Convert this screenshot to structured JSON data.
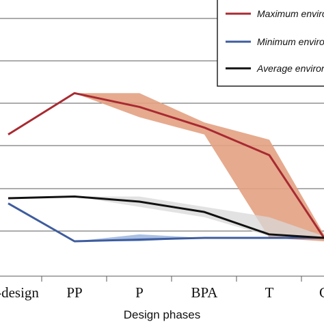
{
  "chart_data": {
    "type": "line",
    "xlabel": "Design phases",
    "categories": [
      "Pre-design",
      "PP",
      "P",
      "BPA",
      "T",
      "C"
    ],
    "grid": true,
    "legend_position": "top-right",
    "series": [
      {
        "name": "Maximum environmental impact",
        "color": "#a82a31",
        "values": [
          0.62,
          0.86,
          0.78,
          0.66,
          0.5,
          0.02
        ],
        "band": {
          "upper": [
            null,
            0.86,
            0.86,
            0.69,
            0.59,
            0.04
          ],
          "lower": [
            null,
            0.86,
            0.72,
            0.62,
            0.02,
            0.0
          ],
          "color": "#e3a182"
        }
      },
      {
        "name": "Minimum environmental impact",
        "color": "#3e5c9e",
        "values": [
          0.22,
          0.0,
          0.01,
          0.02,
          0.02,
          0.02
        ],
        "band": {
          "upper": [
            null,
            0.0,
            0.04,
            0.02,
            0.02,
            0.02
          ],
          "lower": [
            null,
            0.0,
            0.0,
            0.02,
            0.02,
            0.02
          ],
          "color": "#8ca9da"
        }
      },
      {
        "name": "Average environmental impact",
        "color": "#111111",
        "values": [
          0.25,
          0.26,
          0.23,
          0.17,
          0.04,
          0.02
        ],
        "band": {
          "upper": [
            null,
            0.26,
            0.26,
            0.2,
            0.14,
            0.03
          ],
          "lower": [
            null,
            0.26,
            0.2,
            0.14,
            0.03,
            0.02
          ],
          "color": "#d8d8d8"
        }
      }
    ]
  }
}
